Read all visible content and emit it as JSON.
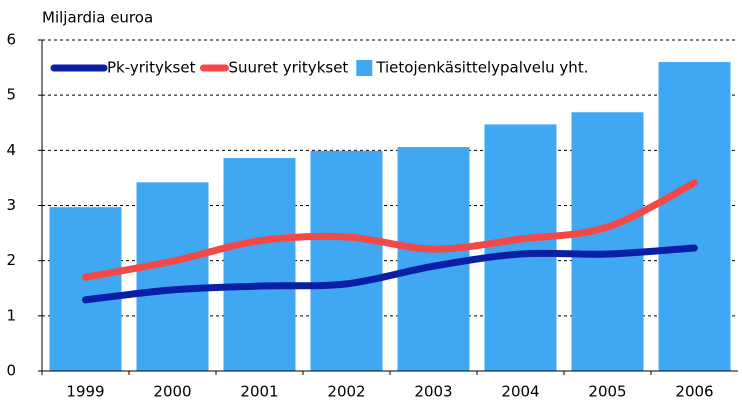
{
  "chart_data": {
    "type": "combo",
    "axis_label": "Miljardia euroa",
    "categories": [
      "1999",
      "2000",
      "2001",
      "2002",
      "2003",
      "2004",
      "2005",
      "2006"
    ],
    "series": [
      {
        "name": "Pk-yritykset",
        "type": "line",
        "color": "#0a1ea8",
        "values": [
          1.29,
          1.47,
          1.54,
          1.58,
          1.9,
          2.12,
          2.12,
          2.23
        ]
      },
      {
        "name": "Suuret yritykset",
        "type": "line",
        "color": "#f24848",
        "values": [
          1.7,
          1.99,
          2.36,
          2.43,
          2.21,
          2.39,
          2.61,
          3.41
        ]
      },
      {
        "name": "Tietojenkäsittelypalvelu yht.",
        "type": "bar",
        "color": "#40a8f2",
        "values": [
          2.97,
          3.42,
          3.86,
          3.99,
          4.06,
          4.47,
          4.69,
          5.6
        ]
      }
    ],
    "ylim": [
      0,
      6
    ],
    "yticks": [
      0,
      1,
      2,
      3,
      4,
      5,
      6
    ],
    "grid": true,
    "legend": "top-left"
  }
}
